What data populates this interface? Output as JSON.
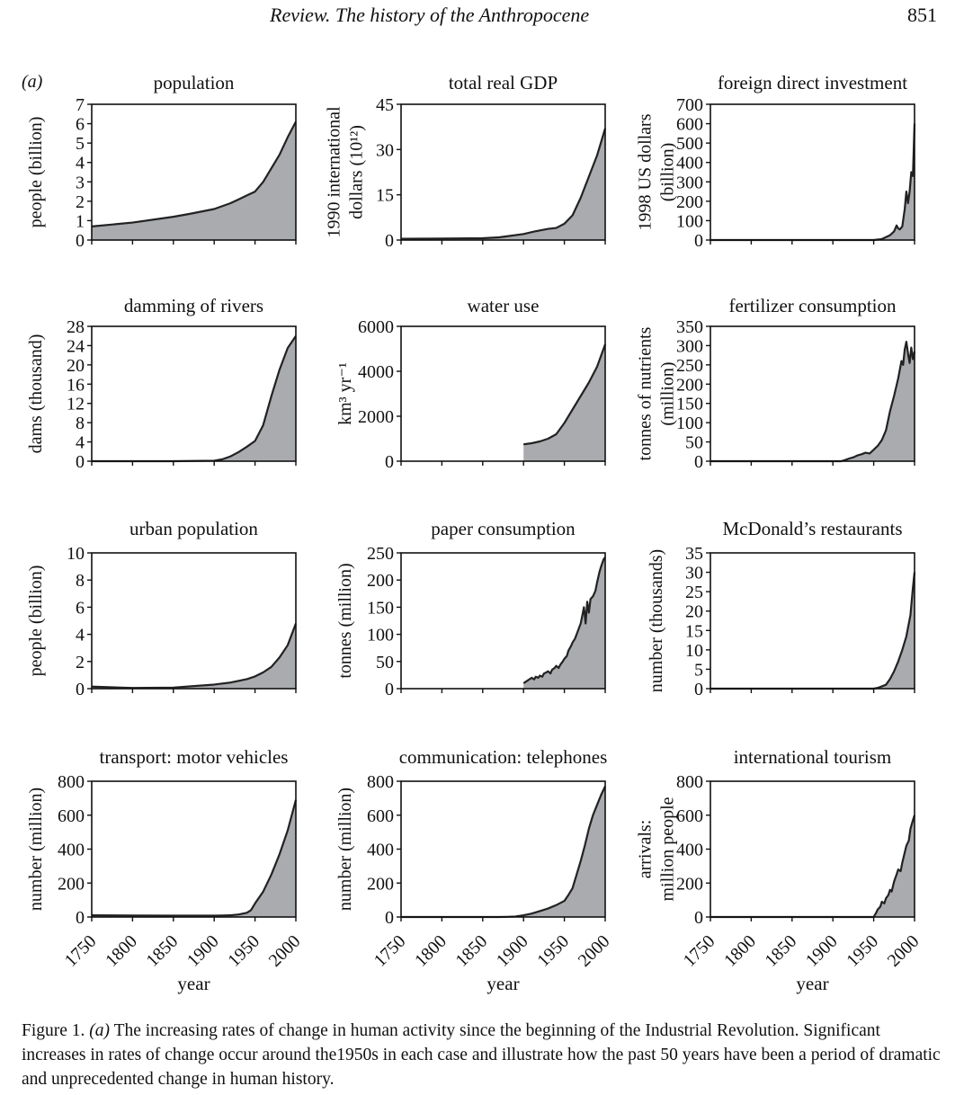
{
  "header": {
    "running_title": "Review. The history of the Anthropocene",
    "page_number": "851"
  },
  "panel_label": "(a)",
  "caption": {
    "figure_number": "Figure 1.",
    "panel": "(a)",
    "text": "The increasing rates of change in human activity since the beginning of the Industrial Revolution. Significant increases in rates of change occur around the1950s in each case and illustrate how the past 50 years have been a period of dramatic and unprecedented change in human history."
  },
  "colors": {
    "fill": "#a9abae",
    "line": "#222222",
    "frame": "#111111"
  },
  "shared_x": {
    "xlabel": "year",
    "ticks": [
      "1750",
      "1800",
      "1850",
      "1900",
      "1950",
      "2000"
    ],
    "xlim": [
      1750,
      2000
    ]
  },
  "chart_data": [
    {
      "type": "area",
      "title": "population",
      "ylabel": [
        "people (billion)"
      ],
      "ylim": [
        0,
        7
      ],
      "yticks": [
        "0",
        "1",
        "2",
        "3",
        "4",
        "5",
        "6",
        "7"
      ],
      "x": [
        1750,
        1800,
        1850,
        1870,
        1900,
        1910,
        1920,
        1930,
        1940,
        1950,
        1960,
        1970,
        1980,
        1990,
        2000
      ],
      "y": [
        0.7,
        0.9,
        1.2,
        1.35,
        1.6,
        1.75,
        1.9,
        2.1,
        2.3,
        2.5,
        3.0,
        3.7,
        4.4,
        5.3,
        6.1
      ]
    },
    {
      "type": "area",
      "title": "total real GDP",
      "ylabel": [
        "1990 international",
        "dollars (10¹²)"
      ],
      "ylim": [
        0,
        45
      ],
      "yticks": [
        "0",
        "15",
        "30",
        "45"
      ],
      "x": [
        1750,
        1800,
        1850,
        1870,
        1900,
        1913,
        1930,
        1940,
        1950,
        1960,
        1970,
        1980,
        1990,
        2000
      ],
      "y": [
        0.4,
        0.5,
        0.6,
        0.9,
        2.0,
        2.8,
        3.7,
        4.0,
        5.4,
        8.2,
        14,
        21,
        28,
        37
      ]
    },
    {
      "type": "area",
      "title": "foreign direct investment",
      "ylabel": [
        "1998 US dollars",
        "(billion)"
      ],
      "ylim": [
        0,
        700
      ],
      "yticks": [
        "0",
        "100",
        "200",
        "300",
        "400",
        "500",
        "600",
        "700"
      ],
      "x": [
        1750,
        1950,
        1960,
        1965,
        1970,
        1975,
        1978,
        1980,
        1982,
        1985,
        1988,
        1990,
        1992,
        1994,
        1996,
        1998,
        2000
      ],
      "y": [
        0,
        0,
        5,
        15,
        25,
        45,
        75,
        60,
        55,
        70,
        160,
        250,
        190,
        250,
        350,
        330,
        600
      ]
    },
    {
      "type": "area",
      "title": "damming of rivers",
      "ylabel": [
        "dams (thousand)"
      ],
      "ylim": [
        0,
        28
      ],
      "yticks": [
        "0",
        "4",
        "8",
        "12",
        "16",
        "20",
        "24",
        "28"
      ],
      "x": [
        1750,
        1850,
        1900,
        1910,
        1920,
        1930,
        1940,
        1950,
        1960,
        1970,
        1980,
        1990,
        2000
      ],
      "y": [
        0,
        0,
        0.1,
        0.4,
        1.0,
        1.9,
        3.0,
        4.2,
        7.5,
        13.5,
        19.0,
        23.5,
        26.0
      ]
    },
    {
      "type": "area",
      "title": "water use",
      "ylabel": [
        "km³ yr⁻¹"
      ],
      "ylim": [
        0,
        6000
      ],
      "yticks": [
        "0",
        "2000",
        "4000",
        "6000"
      ],
      "x": [
        1900,
        1910,
        1920,
        1930,
        1940,
        1950,
        1960,
        1970,
        1980,
        1990,
        2000
      ],
      "y": [
        750,
        800,
        880,
        1000,
        1200,
        1700,
        2300,
        2900,
        3500,
        4200,
        5200
      ]
    },
    {
      "type": "area",
      "title": "fertilizer consumption",
      "ylabel": [
        "tonnes of  nutrients",
        "(million)"
      ],
      "ylim": [
        0,
        350
      ],
      "yticks": [
        "0",
        "50",
        "100",
        "150",
        "200",
        "250",
        "300",
        "350"
      ],
      "x": [
        1750,
        1910,
        1915,
        1920,
        1925,
        1930,
        1935,
        1940,
        1945,
        1950,
        1955,
        1960,
        1965,
        1970,
        1975,
        1980,
        1984,
        1986,
        1988,
        1990,
        1992,
        1994,
        1996,
        1998,
        2000
      ],
      "y": [
        0,
        0,
        3,
        7,
        10,
        15,
        18,
        22,
        20,
        30,
        40,
        55,
        80,
        130,
        170,
        215,
        260,
        250,
        290,
        310,
        280,
        255,
        295,
        265,
        285
      ]
    },
    {
      "type": "area",
      "title": "urban population",
      "ylabel": [
        "people (billion)"
      ],
      "ylim": [
        0,
        10
      ],
      "yticks": [
        "0",
        "2",
        "4",
        "6",
        "8",
        "10"
      ],
      "x": [
        1750,
        1800,
        1850,
        1900,
        1920,
        1940,
        1950,
        1960,
        1970,
        1980,
        1990,
        2000
      ],
      "y": [
        0.15,
        0.05,
        0.08,
        0.3,
        0.45,
        0.7,
        0.9,
        1.2,
        1.6,
        2.3,
        3.2,
        4.8
      ]
    },
    {
      "type": "area",
      "title": "paper consumption",
      "ylabel": [
        "tonnes (million)"
      ],
      "ylim": [
        0,
        250
      ],
      "yticks": [
        "0",
        "50",
        "100",
        "150",
        "200",
        "250"
      ],
      "x": [
        1900,
        1903,
        1905,
        1908,
        1910,
        1913,
        1915,
        1918,
        1920,
        1923,
        1925,
        1928,
        1930,
        1933,
        1935,
        1938,
        1940,
        1943,
        1945,
        1948,
        1950,
        1953,
        1955,
        1958,
        1960,
        1963,
        1965,
        1968,
        1970,
        1972,
        1974,
        1976,
        1978,
        1980,
        1982,
        1985,
        1988,
        1990,
        1993,
        1995,
        1998,
        2000
      ],
      "y": [
        10,
        13,
        15,
        18,
        20,
        17,
        22,
        20,
        24,
        22,
        28,
        30,
        32,
        28,
        35,
        38,
        42,
        38,
        44,
        50,
        55,
        60,
        70,
        78,
        85,
        92,
        100,
        112,
        120,
        135,
        150,
        120,
        160,
        140,
        165,
        170,
        180,
        195,
        215,
        225,
        238,
        242
      ]
    },
    {
      "type": "area",
      "title": "McDonald’s restaurants",
      "ylabel": [
        "number (thousands)"
      ],
      "ylim": [
        0,
        35
      ],
      "yticks": [
        "0",
        "5",
        "10",
        "15",
        "20",
        "25",
        "30",
        "35"
      ],
      "x": [
        1750,
        1950,
        1955,
        1960,
        1965,
        1970,
        1975,
        1980,
        1985,
        1990,
        1995,
        1998,
        2000
      ],
      "y": [
        0,
        0,
        0.2,
        0.6,
        1.0,
        2.5,
        4.5,
        7.0,
        10.0,
        13.5,
        19.0,
        26.0,
        30.0
      ]
    },
    {
      "type": "area",
      "title": "transport: motor vehicles",
      "ylabel": [
        "number (million)"
      ],
      "ylim": [
        0,
        800
      ],
      "yticks": [
        "0",
        "200",
        "400",
        "600",
        "800"
      ],
      "x": [
        1750,
        1800,
        1850,
        1900,
        1910,
        1920,
        1930,
        1940,
        1945,
        1950,
        1960,
        1970,
        1980,
        1990,
        2000
      ],
      "y": [
        10,
        9,
        8,
        8,
        9,
        10,
        15,
        25,
        40,
        80,
        150,
        250,
        370,
        510,
        690
      ]
    },
    {
      "type": "area",
      "title": "communication: telephones",
      "ylabel": [
        "number (million)"
      ],
      "ylim": [
        0,
        800
      ],
      "yticks": [
        "0",
        "200",
        "400",
        "600",
        "800"
      ],
      "x": [
        1750,
        1870,
        1880,
        1890,
        1900,
        1910,
        1920,
        1930,
        1940,
        1950,
        1955,
        1960,
        1965,
        1970,
        1975,
        1980,
        1985,
        1990,
        1995,
        2000
      ],
      "y": [
        0,
        0,
        1,
        3,
        10,
        20,
        35,
        50,
        70,
        95,
        130,
        170,
        250,
        330,
        420,
        520,
        600,
        660,
        720,
        770
      ]
    },
    {
      "type": "area",
      "title": "international tourism",
      "ylabel": [
        "arrivals:",
        "million people"
      ],
      "ylim": [
        0,
        800
      ],
      "yticks": [
        "0",
        "200",
        "400",
        "600",
        "800"
      ],
      "x": [
        1750,
        1950,
        1953,
        1955,
        1958,
        1960,
        1963,
        1965,
        1968,
        1970,
        1972,
        1975,
        1978,
        1980,
        1983,
        1985,
        1988,
        1990,
        1993,
        1995,
        1998,
        2000
      ],
      "y": [
        0,
        0,
        25,
        45,
        60,
        90,
        80,
        110,
        130,
        160,
        150,
        210,
        250,
        280,
        270,
        320,
        380,
        420,
        450,
        520,
        570,
        600
      ]
    }
  ]
}
